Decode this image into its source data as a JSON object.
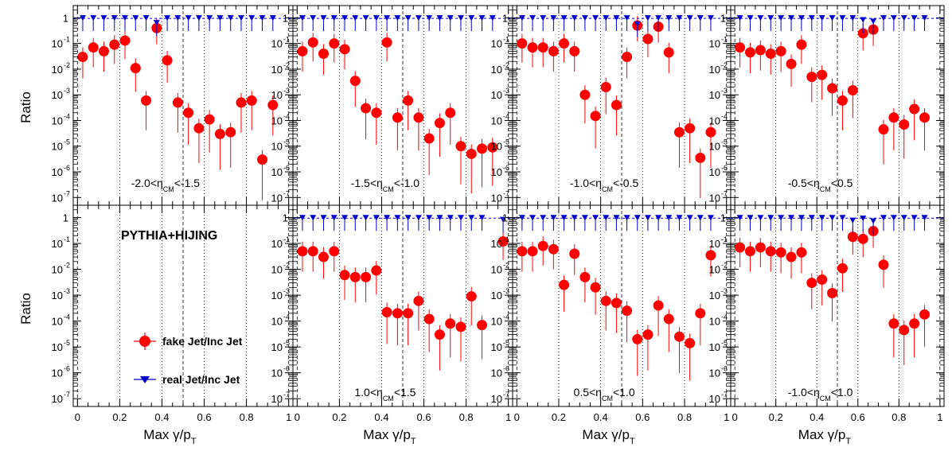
{
  "colors": {
    "fake": "#ff0000",
    "real": "#0000cc",
    "frame": "#000000",
    "grid": "#000000",
    "background": "#ffffff"
  },
  "figure_text": {
    "ylabel_top": "Ratio",
    "ylabel_bottom": "Ratio",
    "xlabel_prefix": "Max ",
    "xlabel_gamma": "γ/p",
    "xlabel_sub": "T",
    "annotation": "PYTHIA+HIJING",
    "legend_fake": "fake Jet/Inc Jet",
    "legend_real": "real Jet/Inc Jet"
  },
  "chart_data": [
    {
      "type": "scatter",
      "y_scale": "log",
      "ylim": [
        5e-08,
        3
      ],
      "xlim": [
        -0.02,
        1.02
      ],
      "dashed_lines_x": [
        0,
        0.5,
        1.0
      ],
      "dotted_lines_x": [
        0.2,
        0.4,
        0.6,
        0.8
      ],
      "region_label": {
        "pre": "-2.0<",
        "eta": "η",
        "sub": "CM",
        "post": "<-1.5"
      },
      "series": [
        {
          "name": "fake Jet/Inc Jet",
          "x": [
            0.025,
            0.075,
            0.125,
            0.175,
            0.225,
            0.275,
            0.325,
            0.375,
            0.425,
            0.475,
            0.525,
            0.575,
            0.625,
            0.675,
            0.725,
            0.775,
            0.825,
            0.875,
            0.925
          ],
          "y": [
            0.03,
            0.07,
            0.05,
            0.09,
            0.13,
            0.011,
            0.0006,
            0.4,
            0.022,
            0.0005,
            0.0002,
            5e-05,
            0.00011,
            3e-05,
            3.5e-05,
            0.0005,
            0.0006,
            3e-06,
            0.0004
          ]
        },
        {
          "name": "real Jet/Inc Jet",
          "x": [
            0.025,
            0.075,
            0.125,
            0.175,
            0.225,
            0.275,
            0.325,
            0.375,
            0.425,
            0.475,
            0.525,
            0.575,
            0.625,
            0.675,
            0.725,
            0.775,
            0.825,
            0.875,
            0.925
          ],
          "y": [
            0.95,
            0.95,
            0.95,
            0.95,
            0.95,
            0.95,
            0.95,
            0.62,
            0.95,
            0.95,
            0.95,
            0.95,
            0.95,
            0.95,
            0.95,
            0.95,
            0.95,
            0.95,
            0.95
          ]
        }
      ]
    },
    {
      "type": "scatter",
      "y_scale": "log",
      "ylim": [
        5e-08,
        3
      ],
      "xlim": [
        -0.02,
        1.02
      ],
      "dashed_lines_x": [
        0,
        0.5,
        1.0
      ],
      "dotted_lines_x": [
        0.2,
        0.4,
        0.6,
        0.8
      ],
      "region_label": {
        "pre": "-1.5<",
        "eta": "η",
        "sub": "CM",
        "post": "<-1.0"
      },
      "series": [
        {
          "name": "fake Jet/Inc Jet",
          "x": [
            0.025,
            0.075,
            0.125,
            0.175,
            0.225,
            0.275,
            0.325,
            0.375,
            0.425,
            0.475,
            0.525,
            0.575,
            0.625,
            0.675,
            0.725,
            0.775,
            0.825,
            0.875,
            0.925
          ],
          "y": [
            0.05,
            0.11,
            0.04,
            0.1,
            0.06,
            0.0035,
            0.0003,
            0.0002,
            0.11,
            0.00013,
            0.0006,
            0.00013,
            2e-05,
            8e-05,
            0.0002,
            1e-05,
            5e-06,
            8e-06,
            9e-06
          ]
        },
        {
          "name": "real Jet/Inc Jet",
          "x": [
            0.025,
            0.075,
            0.125,
            0.175,
            0.225,
            0.275,
            0.325,
            0.375,
            0.425,
            0.475,
            0.525,
            0.575,
            0.625,
            0.675,
            0.725,
            0.775,
            0.825,
            0.875,
            0.925
          ],
          "y": [
            0.95,
            0.95,
            0.95,
            0.95,
            0.95,
            0.95,
            0.95,
            0.95,
            0.95,
            0.95,
            0.95,
            0.95,
            0.95,
            0.95,
            0.95,
            0.95,
            0.95,
            0.95,
            0.95
          ]
        }
      ]
    },
    {
      "type": "scatter",
      "y_scale": "log",
      "ylim": [
        5e-08,
        3
      ],
      "xlim": [
        -0.02,
        1.02
      ],
      "dashed_lines_x": [
        0,
        0.5,
        1.0
      ],
      "dotted_lines_x": [
        0.2,
        0.4,
        0.6,
        0.8
      ],
      "region_label": {
        "pre": "-1.0<",
        "eta": "η",
        "sub": "CM",
        "post": "<-0.5"
      },
      "series": [
        {
          "name": "fake Jet/Inc Jet",
          "x": [
            0.025,
            0.075,
            0.125,
            0.175,
            0.225,
            0.275,
            0.325,
            0.375,
            0.425,
            0.475,
            0.525,
            0.575,
            0.625,
            0.675,
            0.725,
            0.775,
            0.825,
            0.875,
            0.925
          ],
          "y": [
            0.1,
            0.07,
            0.07,
            0.05,
            0.1,
            0.05,
            0.001,
            0.00015,
            0.002,
            0.0004,
            0.03,
            0.5,
            0.15,
            0.45,
            0.045,
            3.5e-05,
            5e-05,
            3.5e-06,
            3.5e-05
          ]
        },
        {
          "name": "real Jet/Inc Jet",
          "x": [
            0.025,
            0.075,
            0.125,
            0.175,
            0.225,
            0.275,
            0.325,
            0.375,
            0.425,
            0.475,
            0.525,
            0.575,
            0.625,
            0.675,
            0.725,
            0.775,
            0.825,
            0.875,
            0.925
          ],
          "y": [
            0.95,
            0.95,
            0.95,
            0.95,
            0.95,
            0.95,
            0.95,
            0.95,
            0.95,
            0.95,
            0.95,
            0.55,
            0.95,
            0.95,
            0.95,
            0.95,
            0.95,
            0.95,
            0.95
          ]
        }
      ]
    },
    {
      "type": "scatter",
      "y_scale": "log",
      "ylim": [
        5e-08,
        3
      ],
      "xlim": [
        -0.02,
        1.02
      ],
      "dashed_lines_x": [
        0,
        0.5,
        1.0
      ],
      "dotted_lines_x": [
        0.2,
        0.4,
        0.6,
        0.8
      ],
      "region_label": {
        "pre": "-0.5<",
        "eta": "η",
        "sub": "CM",
        "post": "<0.5"
      },
      "series": [
        {
          "name": "fake Jet/Inc Jet",
          "x": [
            0.025,
            0.075,
            0.125,
            0.175,
            0.225,
            0.275,
            0.325,
            0.375,
            0.425,
            0.475,
            0.525,
            0.575,
            0.625,
            0.675,
            0.725,
            0.775,
            0.825,
            0.875,
            0.925
          ],
          "y": [
            0.07,
            0.045,
            0.055,
            0.04,
            0.05,
            0.016,
            0.09,
            0.005,
            0.006,
            0.0018,
            0.0006,
            0.0015,
            0.25,
            0.35,
            4.5e-05,
            0.00013,
            7e-05,
            0.00028,
            0.00013
          ]
        },
        {
          "name": "real Jet/Inc Jet",
          "x": [
            0.025,
            0.075,
            0.125,
            0.175,
            0.225,
            0.275,
            0.325,
            0.375,
            0.425,
            0.475,
            0.525,
            0.575,
            0.625,
            0.675,
            0.725,
            0.775,
            0.825,
            0.875,
            0.925
          ],
          "y": [
            0.95,
            0.95,
            0.95,
            0.95,
            0.95,
            0.95,
            0.95,
            0.95,
            0.95,
            0.95,
            0.95,
            0.95,
            0.8,
            0.7,
            0.95,
            0.95,
            0.95,
            0.95,
            0.95
          ]
        }
      ]
    },
    {
      "type": "scatter",
      "y_scale": "log",
      "ylim": [
        5e-08,
        3
      ],
      "xlim": [
        -0.02,
        1.02
      ],
      "dashed_lines_x": [
        0,
        0.5,
        1.0
      ],
      "dotted_lines_x": [
        0.2,
        0.4,
        0.6,
        0.8
      ],
      "region_label": null,
      "series": []
    },
    {
      "type": "scatter",
      "y_scale": "log",
      "ylim": [
        5e-08,
        3
      ],
      "xlim": [
        -0.02,
        1.02
      ],
      "dashed_lines_x": [
        0,
        0.5,
        1.0
      ],
      "dotted_lines_x": [
        0.2,
        0.4,
        0.6,
        0.8
      ],
      "region_label": {
        "pre": "1.0<",
        "eta": "η",
        "sub": "CM",
        "post": "<1.5"
      },
      "series": [
        {
          "name": "fake Jet/Inc Jet",
          "x": [
            0.025,
            0.075,
            0.125,
            0.175,
            0.225,
            0.275,
            0.325,
            0.375,
            0.425,
            0.475,
            0.525,
            0.575,
            0.625,
            0.675,
            0.725,
            0.775,
            0.825,
            0.875,
            0.975
          ],
          "y": [
            0.05,
            0.05,
            0.03,
            0.05,
            0.006,
            0.005,
            0.005,
            0.009,
            0.00022,
            0.0002,
            0.0002,
            0.0006,
            0.00012,
            3e-05,
            8e-05,
            6e-05,
            0.0009,
            7e-05,
            0.12
          ]
        },
        {
          "name": "real Jet/Inc Jet",
          "x": [
            0.025,
            0.075,
            0.125,
            0.175,
            0.225,
            0.275,
            0.325,
            0.375,
            0.425,
            0.475,
            0.525,
            0.575,
            0.625,
            0.675,
            0.725,
            0.775,
            0.825,
            0.875,
            0.975
          ],
          "y": [
            0.95,
            0.95,
            0.95,
            0.95,
            0.95,
            0.95,
            0.95,
            0.95,
            0.95,
            0.95,
            0.95,
            0.95,
            0.95,
            0.95,
            0.95,
            0.95,
            0.95,
            0.95,
            0.8
          ]
        }
      ]
    },
    {
      "type": "scatter",
      "y_scale": "log",
      "ylim": [
        5e-08,
        3
      ],
      "xlim": [
        -0.02,
        1.02
      ],
      "dashed_lines_x": [
        0,
        0.5,
        1.0
      ],
      "dotted_lines_x": [
        0.2,
        0.4,
        0.6,
        0.8
      ],
      "region_label": {
        "pre": "0.5<",
        "eta": "η",
        "sub": "CM",
        "post": "<1.0"
      },
      "series": [
        {
          "name": "fake Jet/Inc Jet",
          "x": [
            0.025,
            0.075,
            0.125,
            0.175,
            0.225,
            0.275,
            0.325,
            0.375,
            0.425,
            0.475,
            0.525,
            0.575,
            0.625,
            0.675,
            0.725,
            0.775,
            0.825,
            0.875,
            0.925
          ],
          "y": [
            0.05,
            0.05,
            0.08,
            0.06,
            0.0025,
            0.04,
            0.005,
            0.002,
            0.0006,
            0.0005,
            0.00025,
            2e-05,
            3e-05,
            0.0004,
            0.00012,
            2.5e-05,
            1.4e-05,
            0.0002,
            0.035
          ]
        },
        {
          "name": "real Jet/Inc Jet",
          "x": [
            0.025,
            0.075,
            0.125,
            0.175,
            0.225,
            0.275,
            0.325,
            0.375,
            0.425,
            0.475,
            0.525,
            0.575,
            0.625,
            0.675,
            0.725,
            0.775,
            0.825,
            0.875,
            0.925
          ],
          "y": [
            0.95,
            0.95,
            0.95,
            0.95,
            0.95,
            0.95,
            0.95,
            0.95,
            0.95,
            0.95,
            0.95,
            0.95,
            0.95,
            0.95,
            0.95,
            0.95,
            0.95,
            0.95,
            0.95
          ]
        }
      ]
    },
    {
      "type": "scatter",
      "y_scale": "log",
      "ylim": [
        5e-08,
        3
      ],
      "xlim": [
        -0.02,
        1.02
      ],
      "dashed_lines_x": [
        0,
        0.5,
        1.0
      ],
      "dotted_lines_x": [
        0.2,
        0.4,
        0.6,
        0.8
      ],
      "region_label": {
        "pre": "-1.0<",
        "eta": "η",
        "sub": "CM",
        "post": "<1.0"
      },
      "series": [
        {
          "name": "fake Jet/Inc Jet",
          "x": [
            0.025,
            0.075,
            0.125,
            0.175,
            0.225,
            0.275,
            0.325,
            0.375,
            0.425,
            0.475,
            0.525,
            0.575,
            0.625,
            0.675,
            0.725,
            0.775,
            0.825,
            0.875,
            0.925
          ],
          "y": [
            0.07,
            0.05,
            0.07,
            0.05,
            0.045,
            0.03,
            0.045,
            0.003,
            0.004,
            0.0012,
            0.011,
            0.18,
            0.15,
            0.3,
            0.015,
            8e-05,
            4.5e-05,
            8e-05,
            0.00018
          ]
        },
        {
          "name": "real Jet/Inc Jet",
          "x": [
            0.025,
            0.075,
            0.125,
            0.175,
            0.225,
            0.275,
            0.325,
            0.375,
            0.425,
            0.475,
            0.525,
            0.575,
            0.625,
            0.675,
            0.725,
            0.775,
            0.825,
            0.875,
            0.925
          ],
          "y": [
            0.95,
            0.95,
            0.95,
            0.95,
            0.95,
            0.95,
            0.95,
            0.95,
            0.95,
            0.95,
            0.95,
            0.75,
            0.9,
            0.7,
            0.95,
            0.95,
            0.95,
            0.95,
            0.95
          ]
        }
      ]
    }
  ]
}
